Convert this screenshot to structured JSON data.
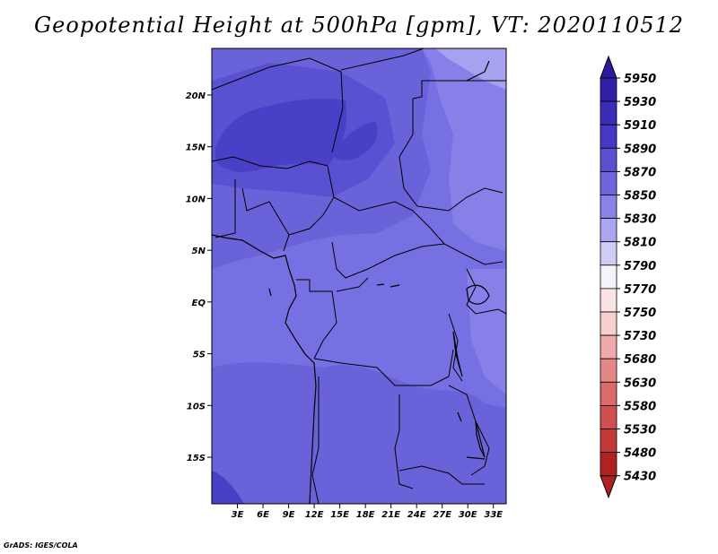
{
  "title": "Geopotential Height at 500hPa [gpm], VT: 2020110512",
  "credit": "GrADS: IGES/COLA",
  "map": {
    "lat_range": [
      -19.5,
      24.5
    ],
    "lon_range": [
      0,
      34.5
    ],
    "lat_ticks": [
      {
        "value": 20,
        "label": "20N"
      },
      {
        "value": 15,
        "label": "15N"
      },
      {
        "value": 10,
        "label": "10N"
      },
      {
        "value": 5,
        "label": "5N"
      },
      {
        "value": 0,
        "label": "EQ"
      },
      {
        "value": -5,
        "label": "5S"
      },
      {
        "value": -10,
        "label": "10S"
      },
      {
        "value": -15,
        "label": "15S"
      }
    ],
    "lon_ticks": [
      {
        "value": 3,
        "label": "3E"
      },
      {
        "value": 6,
        "label": "6E"
      },
      {
        "value": 9,
        "label": "9E"
      },
      {
        "value": 12,
        "label": "12E"
      },
      {
        "value": 15,
        "label": "15E"
      },
      {
        "value": 18,
        "label": "18E"
      },
      {
        "value": 21,
        "label": "21E"
      },
      {
        "value": 24,
        "label": "24E"
      },
      {
        "value": 27,
        "label": "27E"
      },
      {
        "value": 30,
        "label": "30E"
      },
      {
        "value": 33,
        "label": "33E"
      }
    ]
  },
  "colorbar": {
    "levels": [
      "5950",
      "5930",
      "5910",
      "5890",
      "5870",
      "5850",
      "5830",
      "5810",
      "5790",
      "5770",
      "5750",
      "5730",
      "5680",
      "5630",
      "5580",
      "5530",
      "5480",
      "5430"
    ],
    "colors": [
      "#2b1a9e",
      "#3020a8",
      "#3a2db8",
      "#4438c4",
      "#5a51d2",
      "#6d66dd",
      "#8883e8",
      "#aaa6ef",
      "#cfcdf6",
      "#f4f2fb",
      "#fbe3e3",
      "#f6cfcf",
      "#eeaaaa",
      "#e48787",
      "#dc6a6a",
      "#d24f4f",
      "#c43838",
      "#b02222"
    ]
  },
  "fill_colors": {
    "c5850": "#6d66dd",
    "c5870": "#6058d6",
    "c5890": "#4a40c8",
    "c5830": "#8680e8",
    "c5810": "#a7a2f0",
    "background": "#7670e2"
  }
}
